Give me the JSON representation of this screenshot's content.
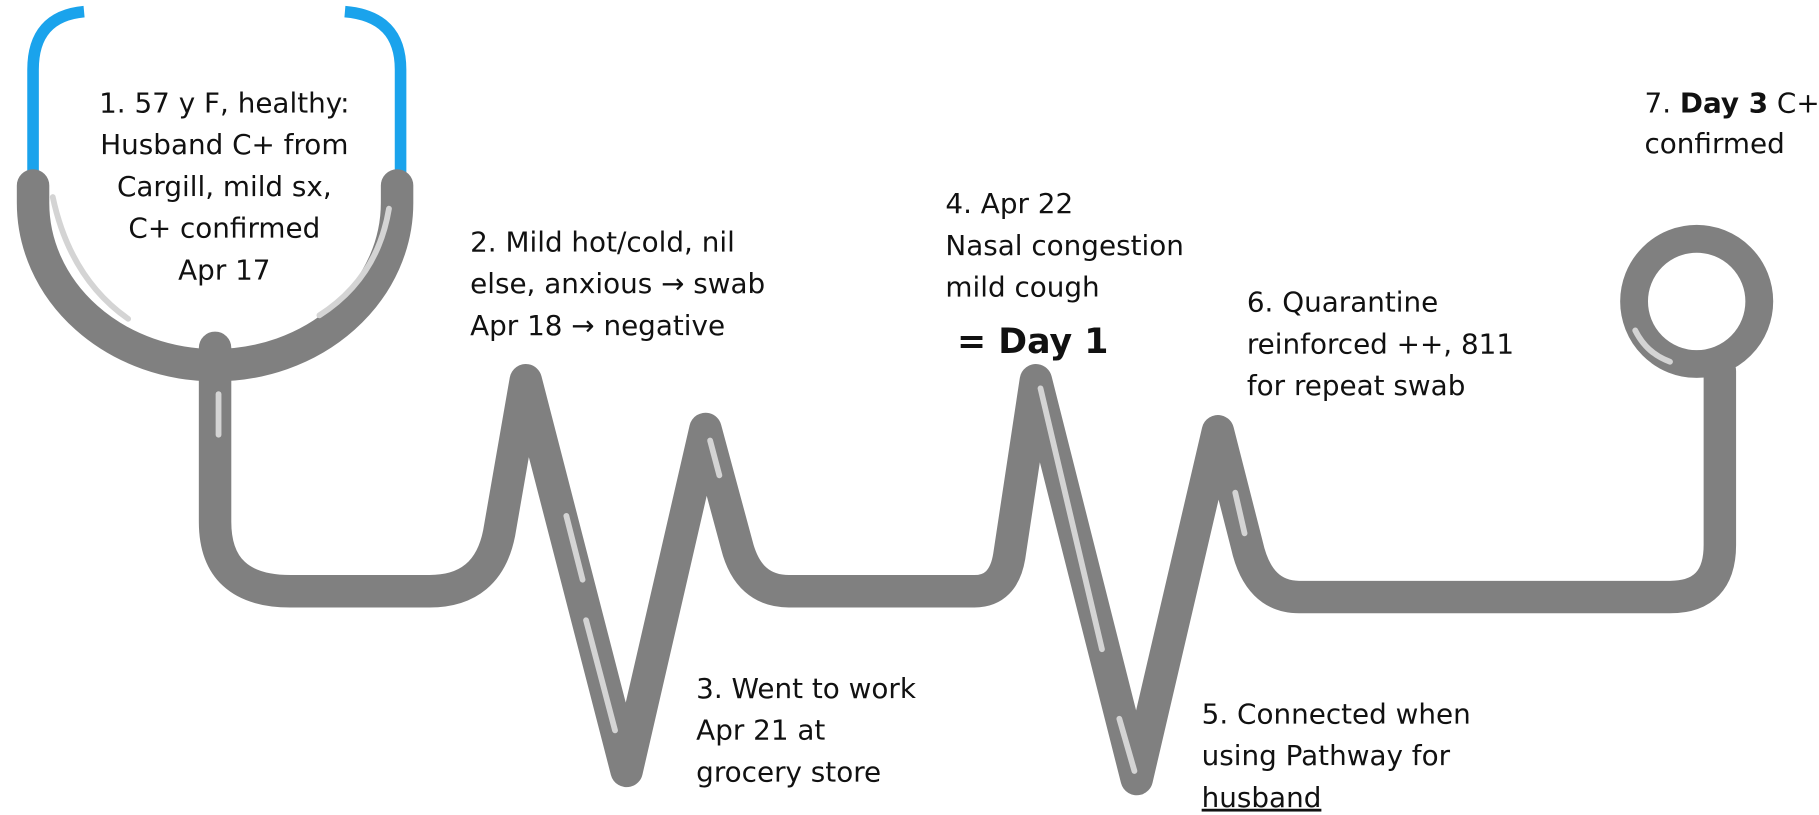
{
  "events": [
    {
      "lines": [
        "1. 57 y F, healthy:",
        "Husband C+ from",
        "Cargill, mild sx,",
        "C+ confirmed",
        "Apr 17"
      ]
    },
    {
      "lines": [
        "2. Mild hot/cold, nil",
        "else, anxious → swab",
        "Apr 18 → negative"
      ]
    },
    {
      "lines": [
        "3. Went to work",
        "Apr 21 at",
        "grocery store"
      ]
    },
    {
      "lines": [
        "4. Apr 22",
        "Nasal congestion",
        "mild cough"
      ],
      "emphasis": "= Day 1"
    },
    {
      "lines": [
        "5. Connected when",
        "using Pathway for"
      ],
      "underlined": "husband"
    },
    {
      "lines": [
        "6. Quarantine",
        "reinforced ++, 811",
        "for repeat swab"
      ]
    },
    {
      "prefix": "7.",
      "bold": "Day 3",
      "suffix": "C+",
      "lines": [
        "confirmed"
      ]
    }
  ]
}
